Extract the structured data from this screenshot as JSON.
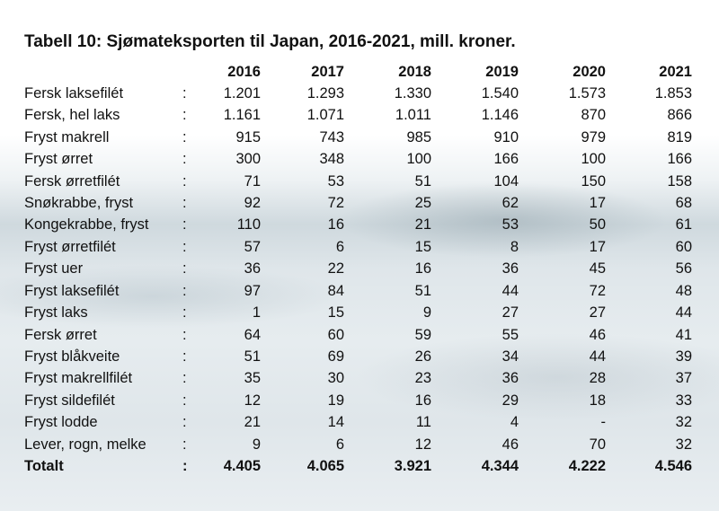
{
  "title": "Tabell 10: Sjømateksporten til Japan, 2016-2021, mill. kroner.",
  "separator": ":",
  "header": [
    "2016",
    "2017",
    "2018",
    "2019",
    "2020",
    "2021"
  ],
  "rows": [
    {
      "label": "Fersk laksefilét",
      "values": [
        "1.201",
        "1.293",
        "1.330",
        "1.540",
        "1.573",
        "1.853"
      ]
    },
    {
      "label": "Fersk, hel laks",
      "values": [
        "1.161",
        "1.071",
        "1.011",
        "1.146",
        "870",
        "866"
      ]
    },
    {
      "label": "Fryst makrell",
      "values": [
        "915",
        "743",
        "985",
        "910",
        "979",
        "819"
      ]
    },
    {
      "label": "Fryst ørret",
      "values": [
        "300",
        "348",
        "100",
        "166",
        "100",
        "166"
      ]
    },
    {
      "label": "Fersk ørretfilét",
      "values": [
        "71",
        "53",
        "51",
        "104",
        "150",
        "158"
      ]
    },
    {
      "label": "Snøkrabbe, fryst",
      "values": [
        "92",
        "72",
        "25",
        "62",
        "17",
        "68"
      ]
    },
    {
      "label": "Kongekrabbe, fryst",
      "values": [
        "110",
        "16",
        "21",
        "53",
        "50",
        "61"
      ]
    },
    {
      "label": "Fryst ørretfilét",
      "values": [
        "57",
        "6",
        "15",
        "8",
        "17",
        "60"
      ]
    },
    {
      "label": "Fryst uer",
      "values": [
        "36",
        "22",
        "16",
        "36",
        "45",
        "56"
      ]
    },
    {
      "label": "Fryst laksefilét",
      "values": [
        "97",
        "84",
        "51",
        "44",
        "72",
        "48"
      ]
    },
    {
      "label": "Fryst laks",
      "values": [
        "1",
        "15",
        "9",
        "27",
        "27",
        "44"
      ]
    },
    {
      "label": "Fersk ørret",
      "values": [
        "64",
        "60",
        "59",
        "55",
        "46",
        "41"
      ]
    },
    {
      "label": "Fryst blåkveite",
      "values": [
        "51",
        "69",
        "26",
        "34",
        "44",
        "39"
      ]
    },
    {
      "label": "Fryst makrellfilét",
      "values": [
        "35",
        "30",
        "23",
        "36",
        "28",
        "37"
      ]
    },
    {
      "label": "Fryst sildefilét",
      "values": [
        "12",
        "19",
        "16",
        "29",
        "18",
        "33"
      ]
    },
    {
      "label": "Fryst lodde",
      "values": [
        "21",
        "14",
        "11",
        "4",
        "-",
        "32"
      ]
    },
    {
      "label": "Lever, rogn, melke",
      "values": [
        "9",
        "6",
        "12",
        "46",
        "70",
        "32"
      ]
    }
  ],
  "total": {
    "label": "Totalt",
    "values": [
      "4.405",
      "4.065",
      "3.921",
      "4.344",
      "4.222",
      "4.546"
    ]
  }
}
